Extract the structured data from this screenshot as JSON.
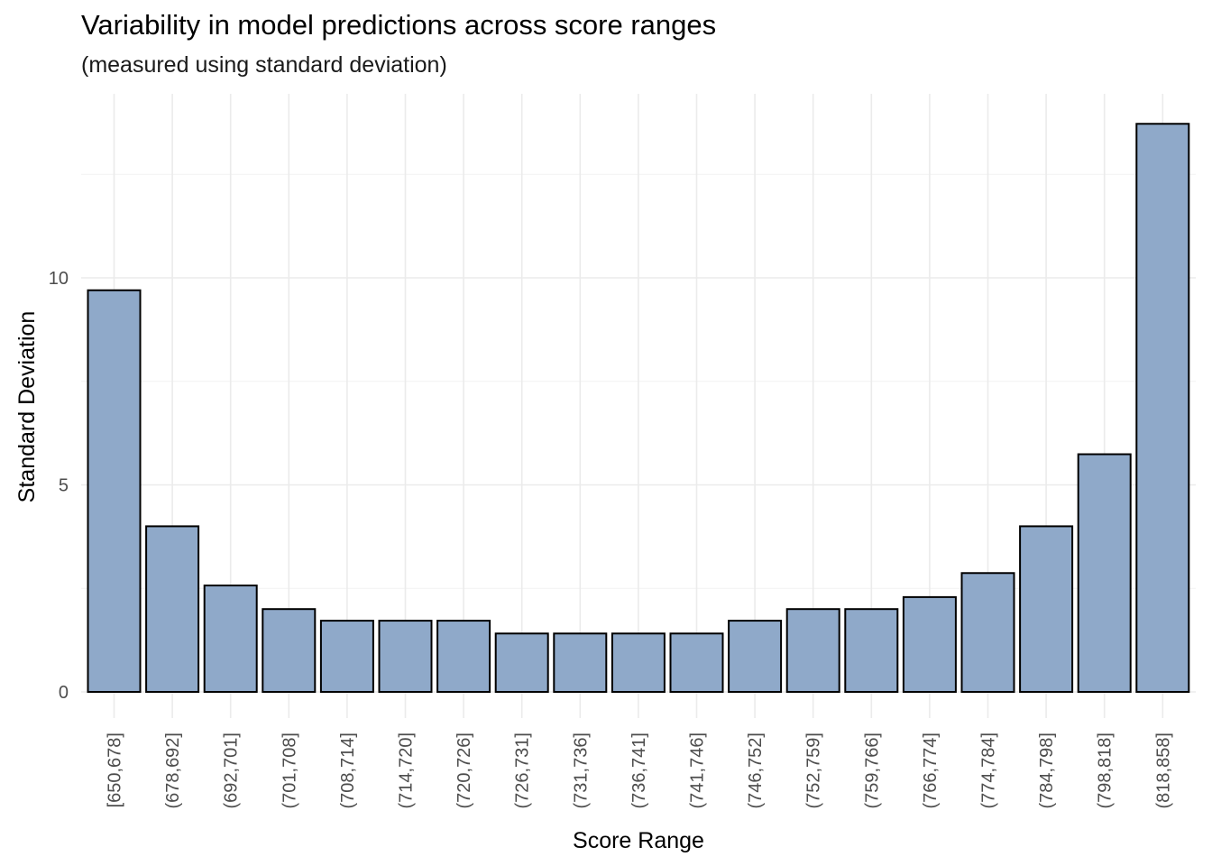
{
  "chart_data": {
    "type": "bar",
    "title": "Variability in model predictions across score ranges",
    "subtitle": "(measured using standard deviation)",
    "xlabel": "Score Range",
    "ylabel": "Standard Deviation",
    "categories": [
      "[650,678]",
      "(678,692]",
      "(692,701]",
      "(701,708]",
      "(708,714]",
      "(714,720]",
      "(720,726]",
      "(726,731]",
      "(731,736]",
      "(736,741]",
      "(741,746]",
      "(746,752]",
      "(752,759]",
      "(759,766]",
      "(766,774]",
      "(774,784]",
      "(784,798]",
      "(798,818]",
      "(818,858]"
    ],
    "values": [
      9.7,
      4.0,
      2.57,
      2.0,
      1.72,
      1.72,
      1.72,
      1.41,
      1.41,
      1.41,
      1.41,
      1.72,
      2.0,
      2.0,
      2.29,
      2.87,
      4.0,
      5.74,
      13.72
    ],
    "ylim": [
      0,
      14.5
    ],
    "yticks": [
      0,
      5,
      10
    ],
    "grid": true,
    "legend": "none",
    "bar_color": "#8fa9c9",
    "bar_outline": "#000000"
  }
}
